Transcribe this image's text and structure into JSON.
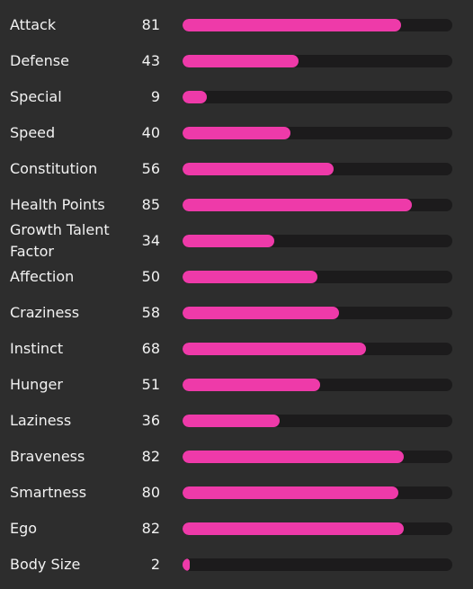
{
  "colors": {
    "background": "#2d2d2d",
    "track": "#1c1b1c",
    "fill": "#ee3aa9",
    "text": "#f2f2f2"
  },
  "stats": [
    {
      "label": "Attack",
      "value": "81"
    },
    {
      "label": "Defense",
      "value": "43"
    },
    {
      "label": "Special",
      "value": "9"
    },
    {
      "label": "Speed",
      "value": "40"
    },
    {
      "label": "Constitution",
      "value": "56"
    },
    {
      "label": "Health Points",
      "value": "85"
    },
    {
      "label": "Growth Talent Factor",
      "value": "34"
    },
    {
      "label": "Affection",
      "value": "50"
    },
    {
      "label": "Craziness",
      "value": "58"
    },
    {
      "label": "Instinct",
      "value": "68"
    },
    {
      "label": "Hunger",
      "value": "51"
    },
    {
      "label": "Laziness",
      "value": "36"
    },
    {
      "label": "Braveness",
      "value": "82"
    },
    {
      "label": "Smartness",
      "value": "80"
    },
    {
      "label": "Ego",
      "value": "82"
    },
    {
      "label": "Body Size",
      "value": "2"
    }
  ]
}
